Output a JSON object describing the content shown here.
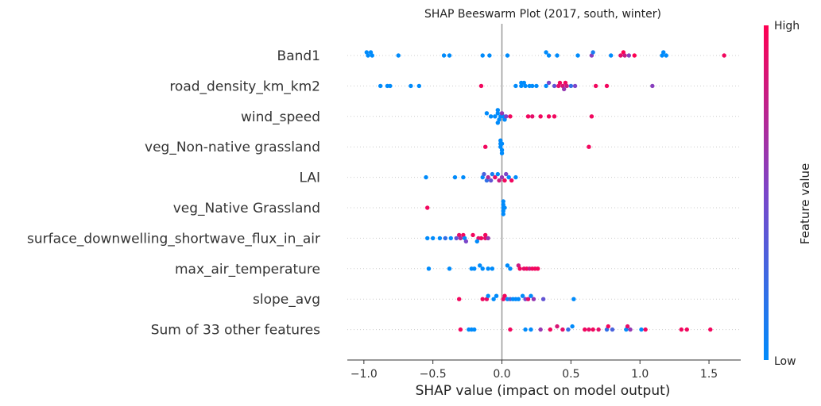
{
  "chart_data": {
    "type": "scatter",
    "subtype": "beeswarm",
    "title": "SHAP Beeswarm Plot (2017, south, winter)",
    "xlabel": "SHAP value (impact on model output)",
    "xlim": [
      -1.12,
      1.73
    ],
    "xticks": [
      -1.0,
      -0.5,
      0.0,
      0.5,
      1.0,
      1.5
    ],
    "xtick_labels": [
      "−1.0",
      "−0.5",
      "0.0",
      "0.5",
      "1.0",
      "1.5"
    ],
    "colorbar": {
      "label": "Feature value",
      "high_label": "High",
      "low_label": "Low",
      "high_color": "#ff0052",
      "mid_color": "#7b46c9",
      "low_color": "#008bfb"
    },
    "features": [
      {
        "name": "Band1",
        "points": [
          {
            "x": -0.98,
            "v": 0.0,
            "dy": -1
          },
          {
            "x": -0.95,
            "v": 0.0,
            "dy": -1
          },
          {
            "x": -0.97,
            "v": 0.0,
            "dy": 0
          },
          {
            "x": -0.94,
            "v": 0.0,
            "dy": 0
          },
          {
            "x": -0.75,
            "v": 0.0,
            "dy": 0
          },
          {
            "x": -0.42,
            "v": 0.0,
            "dy": 0
          },
          {
            "x": -0.38,
            "v": 0.0,
            "dy": 0
          },
          {
            "x": -0.14,
            "v": 0.0,
            "dy": 0
          },
          {
            "x": -0.09,
            "v": 0.0,
            "dy": 0
          },
          {
            "x": 0.04,
            "v": 0.0,
            "dy": 0
          },
          {
            "x": 0.32,
            "v": 0.0,
            "dy": -1
          },
          {
            "x": 0.34,
            "v": 0.0,
            "dy": 0
          },
          {
            "x": 0.4,
            "v": 0.0,
            "dy": 0
          },
          {
            "x": 0.55,
            "v": 0.0,
            "dy": 0
          },
          {
            "x": 0.65,
            "v": 0.55,
            "dy": 0
          },
          {
            "x": 0.66,
            "v": 0.1,
            "dy": -1
          },
          {
            "x": 0.79,
            "v": 0.0,
            "dy": 0
          },
          {
            "x": 0.88,
            "v": 1.0,
            "dy": -1
          },
          {
            "x": 0.86,
            "v": 0.9,
            "dy": 0
          },
          {
            "x": 0.89,
            "v": 0.8,
            "dy": 0
          },
          {
            "x": 0.92,
            "v": 0.55,
            "dy": 0
          },
          {
            "x": 0.96,
            "v": 1.0,
            "dy": 0
          },
          {
            "x": 1.17,
            "v": 0.0,
            "dy": -1
          },
          {
            "x": 1.16,
            "v": 0.0,
            "dy": 0
          },
          {
            "x": 1.19,
            "v": 0.0,
            "dy": 0
          },
          {
            "x": 1.61,
            "v": 0.95,
            "dy": 0
          }
        ]
      },
      {
        "name": "road_density_km_km2",
        "points": [
          {
            "x": -0.88,
            "v": 0.0,
            "dy": 0
          },
          {
            "x": -0.83,
            "v": 0.0,
            "dy": 0
          },
          {
            "x": -0.81,
            "v": 0.0,
            "dy": 0
          },
          {
            "x": -0.66,
            "v": 0.0,
            "dy": 0
          },
          {
            "x": -0.6,
            "v": 0.0,
            "dy": 0
          },
          {
            "x": -0.15,
            "v": 0.95,
            "dy": 0
          },
          {
            "x": 0.1,
            "v": 0.0,
            "dy": 0
          },
          {
            "x": 0.14,
            "v": 0.0,
            "dy": -1
          },
          {
            "x": 0.16,
            "v": 0.0,
            "dy": -1
          },
          {
            "x": 0.14,
            "v": 0.0,
            "dy": 0
          },
          {
            "x": 0.17,
            "v": 0.0,
            "dy": 0
          },
          {
            "x": 0.2,
            "v": 0.0,
            "dy": 0
          },
          {
            "x": 0.22,
            "v": 0.0,
            "dy": 0
          },
          {
            "x": 0.25,
            "v": 0.0,
            "dy": 0
          },
          {
            "x": 0.34,
            "v": 0.5,
            "dy": -1
          },
          {
            "x": 0.32,
            "v": 0.0,
            "dy": 0
          },
          {
            "x": 0.38,
            "v": 0.4,
            "dy": 0
          },
          {
            "x": 0.42,
            "v": 0.95,
            "dy": -1
          },
          {
            "x": 0.46,
            "v": 0.95,
            "dy": -1
          },
          {
            "x": 0.41,
            "v": 0.9,
            "dy": 0
          },
          {
            "x": 0.44,
            "v": 0.85,
            "dy": 0
          },
          {
            "x": 0.45,
            "v": 0.6,
            "dy": 1
          },
          {
            "x": 0.47,
            "v": 0.8,
            "dy": 0
          },
          {
            "x": 0.5,
            "v": 0.2,
            "dy": 0
          },
          {
            "x": 0.53,
            "v": 0.5,
            "dy": 0
          },
          {
            "x": 0.68,
            "v": 0.95,
            "dy": 0
          },
          {
            "x": 0.76,
            "v": 0.95,
            "dy": 0
          },
          {
            "x": 1.09,
            "v": 0.55,
            "dy": 0
          }
        ]
      },
      {
        "name": "wind_speed",
        "points": [
          {
            "x": -0.11,
            "v": 0.0,
            "dy": -1
          },
          {
            "x": -0.03,
            "v": 0.0,
            "dy": -2
          },
          {
            "x": -0.08,
            "v": 0.0,
            "dy": 0
          },
          {
            "x": -0.05,
            "v": 0.0,
            "dy": 0
          },
          {
            "x": -0.03,
            "v": 0.0,
            "dy": -1
          },
          {
            "x": -0.01,
            "v": 0.0,
            "dy": 0
          },
          {
            "x": 0.01,
            "v": 0.0,
            "dy": 0
          },
          {
            "x": 0.02,
            "v": 0.0,
            "dy": 1
          },
          {
            "x": -0.02,
            "v": 0.0,
            "dy": 1
          },
          {
            "x": -0.03,
            "v": 0.0,
            "dy": 2
          },
          {
            "x": 0.0,
            "v": 0.6,
            "dy": -1
          },
          {
            "x": 0.03,
            "v": 0.5,
            "dy": 0
          },
          {
            "x": 0.06,
            "v": 0.95,
            "dy": 0
          },
          {
            "x": 0.19,
            "v": 0.95,
            "dy": 0
          },
          {
            "x": 0.22,
            "v": 0.9,
            "dy": 0
          },
          {
            "x": 0.28,
            "v": 0.95,
            "dy": 0
          },
          {
            "x": 0.34,
            "v": 0.95,
            "dy": 0
          },
          {
            "x": 0.38,
            "v": 0.95,
            "dy": 0
          },
          {
            "x": 0.65,
            "v": 0.95,
            "dy": 0
          }
        ]
      },
      {
        "name": "veg_Non-native grassland ",
        "points": [
          {
            "x": -0.12,
            "v": 0.95,
            "dy": 0
          },
          {
            "x": -0.01,
            "v": 0.0,
            "dy": -2
          },
          {
            "x": -0.01,
            "v": 0.0,
            "dy": -1
          },
          {
            "x": -0.01,
            "v": 0.0,
            "dy": 0
          },
          {
            "x": 0.0,
            "v": 0.0,
            "dy": 1
          },
          {
            "x": 0.0,
            "v": 0.0,
            "dy": 2
          },
          {
            "x": 0.0,
            "v": 0.0,
            "dy": -1
          },
          {
            "x": 0.63,
            "v": 0.95,
            "dy": 0
          }
        ]
      },
      {
        "name": "LAI",
        "points": [
          {
            "x": -0.55,
            "v": 0.0,
            "dy": 0
          },
          {
            "x": -0.34,
            "v": 0.0,
            "dy": 0
          },
          {
            "x": -0.28,
            "v": 0.0,
            "dy": 0
          },
          {
            "x": -0.14,
            "v": 0.0,
            "dy": 0
          },
          {
            "x": -0.13,
            "v": 0.3,
            "dy": -1
          },
          {
            "x": -0.11,
            "v": 0.2,
            "dy": 1
          },
          {
            "x": -0.1,
            "v": 0.7,
            "dy": 0
          },
          {
            "x": -0.08,
            "v": 0.4,
            "dy": 1
          },
          {
            "x": -0.07,
            "v": 0.1,
            "dy": -1
          },
          {
            "x": -0.05,
            "v": 0.9,
            "dy": 0
          },
          {
            "x": -0.03,
            "v": 0.0,
            "dy": -1
          },
          {
            "x": -0.02,
            "v": 0.8,
            "dy": 1
          },
          {
            "x": 0.0,
            "v": 0.6,
            "dy": 0
          },
          {
            "x": 0.02,
            "v": 0.95,
            "dy": 1
          },
          {
            "x": 0.03,
            "v": 0.5,
            "dy": -1
          },
          {
            "x": 0.05,
            "v": 0.0,
            "dy": 0
          },
          {
            "x": 0.07,
            "v": 0.95,
            "dy": 1
          },
          {
            "x": 0.1,
            "v": 0.0,
            "dy": 0
          }
        ]
      },
      {
        "name": "veg_Native Grassland ",
        "points": [
          {
            "x": -0.54,
            "v": 0.95,
            "dy": 0
          },
          {
            "x": 0.01,
            "v": 0.0,
            "dy": -2
          },
          {
            "x": 0.01,
            "v": 0.0,
            "dy": -1
          },
          {
            "x": 0.01,
            "v": 0.0,
            "dy": 0
          },
          {
            "x": 0.01,
            "v": 0.0,
            "dy": 1
          },
          {
            "x": 0.01,
            "v": 0.0,
            "dy": 2
          },
          {
            "x": 0.02,
            "v": 0.0,
            "dy": 0
          }
        ]
      },
      {
        "name": "surface_downwelling_shortwave_flux_in_air",
        "points": [
          {
            "x": -0.54,
            "v": 0.0,
            "dy": 0
          },
          {
            "x": -0.5,
            "v": 0.0,
            "dy": 0
          },
          {
            "x": -0.45,
            "v": 0.0,
            "dy": 0
          },
          {
            "x": -0.41,
            "v": 0.2,
            "dy": 0
          },
          {
            "x": -0.37,
            "v": 0.0,
            "dy": 0
          },
          {
            "x": -0.33,
            "v": 0.4,
            "dy": 0
          },
          {
            "x": -0.31,
            "v": 0.9,
            "dy": -1
          },
          {
            "x": -0.28,
            "v": 0.95,
            "dy": -1
          },
          {
            "x": -0.3,
            "v": 0.7,
            "dy": 0
          },
          {
            "x": -0.27,
            "v": 0.0,
            "dy": 0
          },
          {
            "x": -0.26,
            "v": 0.5,
            "dy": 1
          },
          {
            "x": -0.21,
            "v": 0.95,
            "dy": -1
          },
          {
            "x": -0.17,
            "v": 0.9,
            "dy": 0
          },
          {
            "x": -0.15,
            "v": 0.95,
            "dy": 0
          },
          {
            "x": -0.12,
            "v": 0.95,
            "dy": -1
          },
          {
            "x": -0.12,
            "v": 0.9,
            "dy": 0
          },
          {
            "x": -0.1,
            "v": 0.6,
            "dy": 0
          },
          {
            "x": -0.18,
            "v": 0.0,
            "dy": 1
          }
        ]
      },
      {
        "name": "max_air_temperature",
        "points": [
          {
            "x": -0.53,
            "v": 0.0,
            "dy": 0
          },
          {
            "x": -0.38,
            "v": 0.0,
            "dy": 0
          },
          {
            "x": -0.22,
            "v": 0.0,
            "dy": 0
          },
          {
            "x": -0.2,
            "v": 0.0,
            "dy": 0
          },
          {
            "x": -0.16,
            "v": 0.0,
            "dy": -1
          },
          {
            "x": -0.14,
            "v": 0.0,
            "dy": 0
          },
          {
            "x": -0.1,
            "v": 0.0,
            "dy": 0
          },
          {
            "x": -0.07,
            "v": 0.0,
            "dy": 0
          },
          {
            "x": 0.04,
            "v": 0.0,
            "dy": -1
          },
          {
            "x": 0.06,
            "v": 0.0,
            "dy": 0
          },
          {
            "x": 0.12,
            "v": 0.8,
            "dy": -1
          },
          {
            "x": 0.13,
            "v": 0.95,
            "dy": 0
          },
          {
            "x": 0.16,
            "v": 0.9,
            "dy": 0
          },
          {
            "x": 0.18,
            "v": 0.95,
            "dy": 0
          },
          {
            "x": 0.2,
            "v": 0.8,
            "dy": 0
          },
          {
            "x": 0.22,
            "v": 0.95,
            "dy": 0
          },
          {
            "x": 0.24,
            "v": 0.95,
            "dy": 0
          },
          {
            "x": 0.26,
            "v": 0.95,
            "dy": 0
          }
        ]
      },
      {
        "name": "slope_avg",
        "points": [
          {
            "x": -0.31,
            "v": 0.95,
            "dy": 0
          },
          {
            "x": -0.14,
            "v": 0.95,
            "dy": 0
          },
          {
            "x": -0.11,
            "v": 0.9,
            "dy": 0
          },
          {
            "x": -0.1,
            "v": 0.0,
            "dy": -1
          },
          {
            "x": -0.06,
            "v": 0.0,
            "dy": 0
          },
          {
            "x": -0.04,
            "v": 0.0,
            "dy": -1
          },
          {
            "x": 0.01,
            "v": 0.9,
            "dy": 0
          },
          {
            "x": 0.02,
            "v": 0.95,
            "dy": -1
          },
          {
            "x": 0.04,
            "v": 0.0,
            "dy": 0
          },
          {
            "x": 0.06,
            "v": 0.3,
            "dy": 0
          },
          {
            "x": 0.08,
            "v": 0.0,
            "dy": 0
          },
          {
            "x": 0.1,
            "v": 0.0,
            "dy": 0
          },
          {
            "x": 0.12,
            "v": 0.0,
            "dy": 0
          },
          {
            "x": 0.15,
            "v": 0.0,
            "dy": -1
          },
          {
            "x": 0.17,
            "v": 0.5,
            "dy": 0
          },
          {
            "x": 0.19,
            "v": 0.9,
            "dy": 0
          },
          {
            "x": 0.21,
            "v": 0.0,
            "dy": -1
          },
          {
            "x": 0.23,
            "v": 0.6,
            "dy": 0
          },
          {
            "x": 0.3,
            "v": 0.4,
            "dy": 0
          },
          {
            "x": 0.52,
            "v": 0.0,
            "dy": 0
          }
        ]
      },
      {
        "name": "Sum of 33 other features",
        "points": [
          {
            "x": -0.3,
            "v": 0.95,
            "dy": 0
          },
          {
            "x": -0.24,
            "v": 0.0,
            "dy": 0
          },
          {
            "x": -0.22,
            "v": 0.0,
            "dy": 0
          },
          {
            "x": -0.2,
            "v": 0.0,
            "dy": 0
          },
          {
            "x": 0.06,
            "v": 0.95,
            "dy": 0
          },
          {
            "x": 0.17,
            "v": 0.0,
            "dy": 0
          },
          {
            "x": 0.21,
            "v": 0.0,
            "dy": 0
          },
          {
            "x": 0.28,
            "v": 0.6,
            "dy": 0
          },
          {
            "x": 0.35,
            "v": 0.95,
            "dy": 0
          },
          {
            "x": 0.4,
            "v": 0.85,
            "dy": -1
          },
          {
            "x": 0.44,
            "v": 0.9,
            "dy": 0
          },
          {
            "x": 0.48,
            "v": 0.2,
            "dy": 0
          },
          {
            "x": 0.51,
            "v": 0.0,
            "dy": -1
          },
          {
            "x": 0.6,
            "v": 0.95,
            "dy": 0
          },
          {
            "x": 0.63,
            "v": 0.9,
            "dy": 0
          },
          {
            "x": 0.66,
            "v": 0.95,
            "dy": 0
          },
          {
            "x": 0.7,
            "v": 0.9,
            "dy": 0
          },
          {
            "x": 0.76,
            "v": 0.2,
            "dy": 0
          },
          {
            "x": 0.77,
            "v": 0.95,
            "dy": -1
          },
          {
            "x": 0.8,
            "v": 0.3,
            "dy": 0
          },
          {
            "x": 0.9,
            "v": 0.0,
            "dy": 0
          },
          {
            "x": 0.91,
            "v": 0.9,
            "dy": -1
          },
          {
            "x": 0.93,
            "v": 0.6,
            "dy": 0
          },
          {
            "x": 1.01,
            "v": 0.0,
            "dy": 0
          },
          {
            "x": 1.04,
            "v": 0.95,
            "dy": 0
          },
          {
            "x": 1.3,
            "v": 0.95,
            "dy": 0
          },
          {
            "x": 1.34,
            "v": 0.95,
            "dy": 0
          },
          {
            "x": 1.51,
            "v": 0.95,
            "dy": 0
          }
        ]
      }
    ]
  }
}
